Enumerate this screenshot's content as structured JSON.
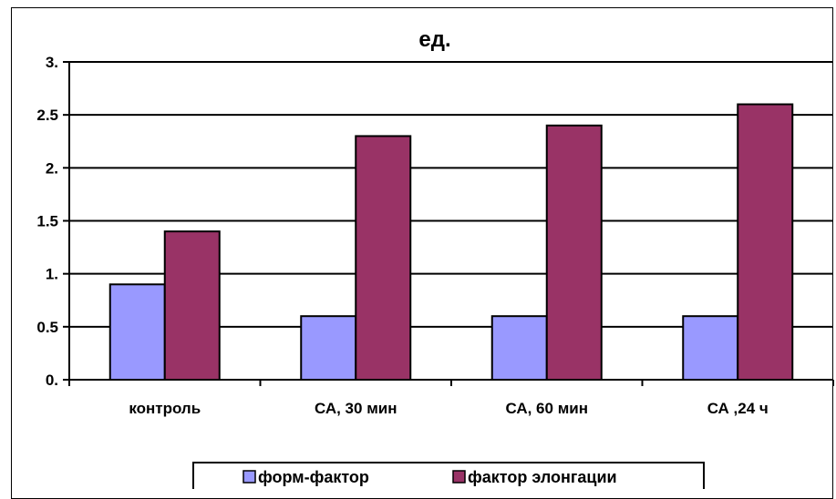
{
  "chart_data": {
    "type": "bar",
    "title": "ед.",
    "categories": [
      "контроль",
      "СА, 30 мин",
      "СА, 60 мин",
      "СА ,24 ч"
    ],
    "series": [
      {
        "name": "форм-фактор",
        "values": [
          0.9,
          0.6,
          0.6,
          0.6
        ],
        "color": "#9999ff"
      },
      {
        "name": "фактор элонгации",
        "values": [
          1.4,
          2.3,
          2.4,
          2.6
        ],
        "color": "#993366"
      }
    ],
    "yticks": [
      "0.",
      "0.5",
      "1.",
      "1.5",
      "2.",
      "2.5",
      "3."
    ],
    "ylim": [
      0,
      3
    ],
    "grid": true,
    "legend_position": "bottom"
  }
}
